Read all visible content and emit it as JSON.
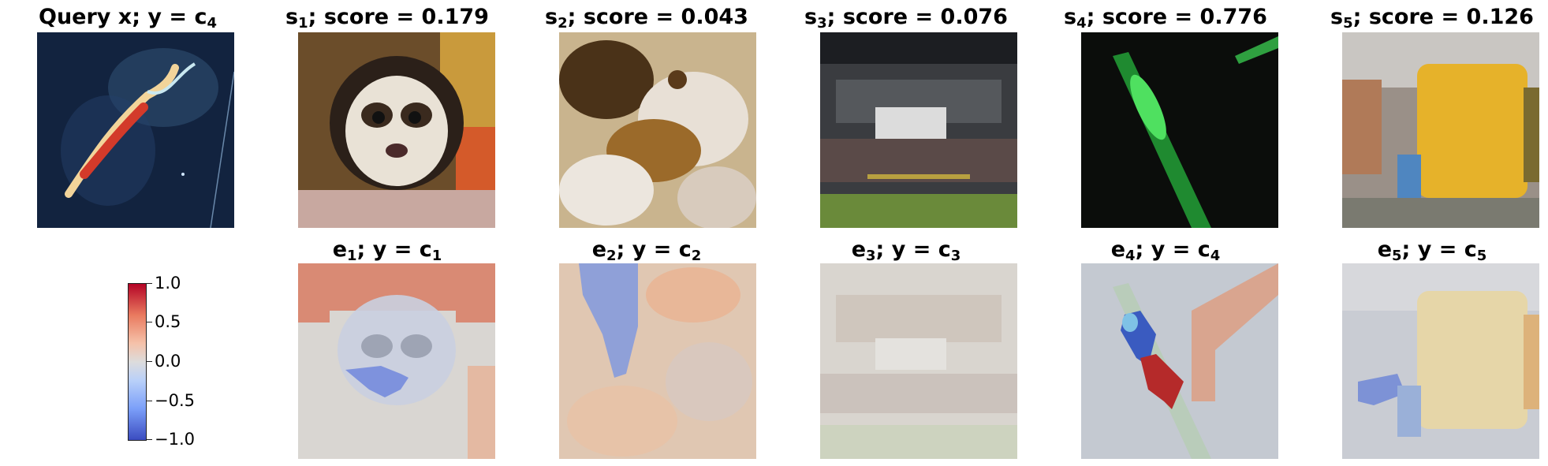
{
  "top_row": [
    {
      "title_main": "Query x; y = c",
      "title_sub": "4"
    },
    {
      "title_main": "s",
      "title_sub": "1",
      "title_tail": "; score = 0.179"
    },
    {
      "title_main": "s",
      "title_sub": "2",
      "title_tail": "; score = 0.043"
    },
    {
      "title_main": "s",
      "title_sub": "3",
      "title_tail": "; score = 0.076"
    },
    {
      "title_main": "s",
      "title_sub": "4",
      "title_tail": "; score = 0.776"
    },
    {
      "title_main": "s",
      "title_sub": "5",
      "title_tail": "; score = 0.126"
    }
  ],
  "bottom_row": [
    {
      "title_main": "e",
      "title_sub": "1",
      "title_mid": "; y = c",
      "title_sub2": "1"
    },
    {
      "title_main": "e",
      "title_sub": "2",
      "title_mid": "; y = c",
      "title_sub2": "2"
    },
    {
      "title_main": "e",
      "title_sub": "3",
      "title_mid": "; y = c",
      "title_sub2": "3"
    },
    {
      "title_main": "e",
      "title_sub": "4",
      "title_mid": "; y = c",
      "title_sub2": "4"
    },
    {
      "title_main": "e",
      "title_sub": "5",
      "title_mid": "; y = c",
      "title_sub2": "5"
    }
  ],
  "colorbar": {
    "ticks": [
      "1.0",
      "0.5",
      "0.0",
      "−0.5",
      "−1.0"
    ],
    "colormap": [
      "#b40426",
      "#dddcdc",
      "#3b4cc0"
    ]
  }
}
